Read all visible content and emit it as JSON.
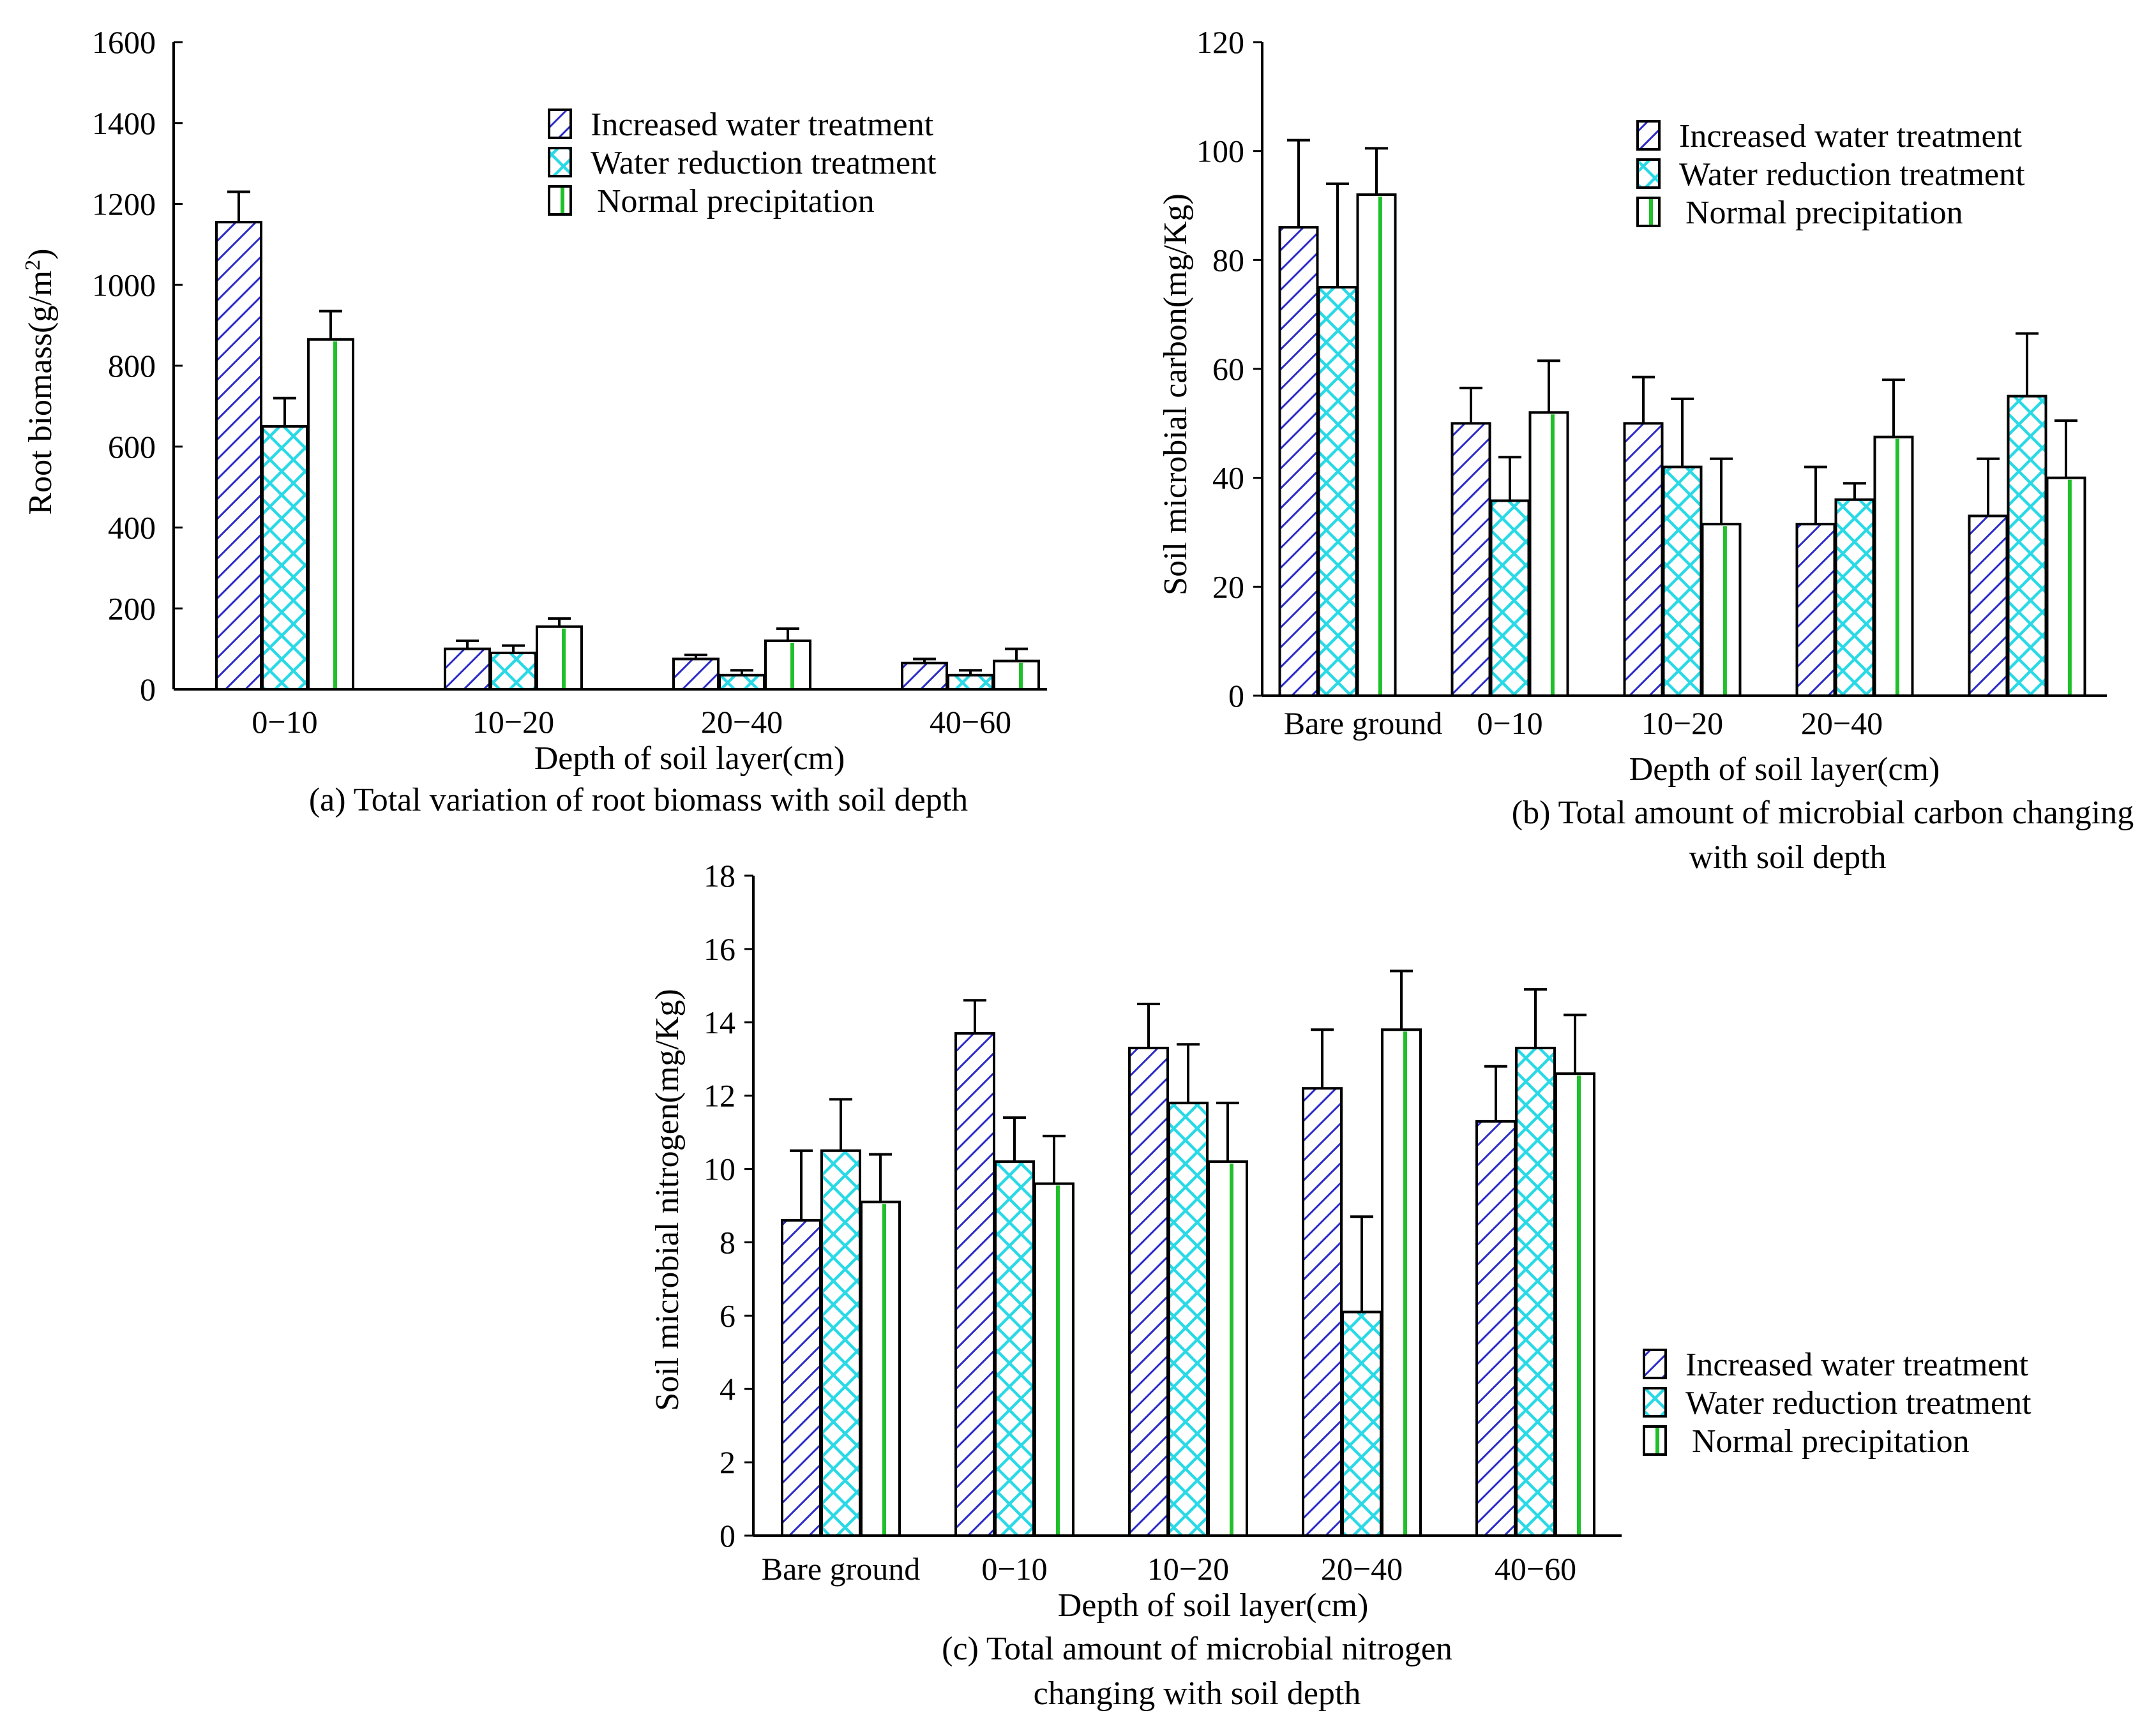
{
  "colors": {
    "increased_stroke": "#2b2bc8",
    "reduction_stroke": "#29d9e6",
    "normal_stroke": "#1fc02a",
    "frame": "#000000",
    "background": "#ffffff"
  },
  "legend": {
    "increased": "Increased water treatment",
    "reduction": "Water reduction treatment",
    "normal": "Normal precipitation"
  },
  "chart_data": [
    {
      "id": "a",
      "type": "bar",
      "caption": [
        "(a) Total variation of root biomass with soil depth"
      ],
      "xlabel": "Depth of soil layer(cm)",
      "ylabel": "Root biomass(g/m",
      "ylabel_sup": "2",
      "ylabel_end": ")",
      "ylim": [
        0,
        1600
      ],
      "yticks": [
        "0",
        "200",
        "400",
        "600",
        "800",
        "1000",
        "1200",
        "1400",
        "1600"
      ],
      "categories": [
        "0−10",
        "10−20",
        "20−40",
        "40−60"
      ],
      "legend_position": "top-right",
      "series": [
        {
          "name": "Increased water treatment",
          "pattern": "increased",
          "values": [
            1155,
            100,
            75,
            65
          ],
          "errors": [
            75,
            20,
            10,
            10
          ]
        },
        {
          "name": "Water reduction treatment",
          "pattern": "reduction",
          "values": [
            650,
            90,
            35,
            35
          ],
          "errors": [
            70,
            18,
            12,
            12
          ]
        },
        {
          "name": "Normal precipitation",
          "pattern": "normal",
          "values": [
            865,
            155,
            120,
            70
          ],
          "errors": [
            70,
            20,
            30,
            30
          ]
        }
      ]
    },
    {
      "id": "b",
      "type": "bar",
      "caption": [
        "(b) Total amount of microbial carbon changing",
        "with soil depth"
      ],
      "xlabel": "Depth of soil layer(cm)",
      "ylabel": "Soil microbial carbon(mg/Kg)",
      "ylim": [
        0,
        120
      ],
      "yticks": [
        "0",
        "20",
        "40",
        "60",
        "80",
        "100",
        "120"
      ],
      "categories": [
        "Bare ground",
        "0−10",
        "10−20",
        "20−40",
        ""
      ],
      "legend_position": "top-right",
      "series": [
        {
          "name": "Increased water treatment",
          "pattern": "increased",
          "values": [
            86,
            50,
            50,
            31.5,
            33
          ],
          "errors": [
            16,
            6.5,
            8.5,
            10.5,
            10.5
          ]
        },
        {
          "name": "Water reduction treatment",
          "pattern": "reduction",
          "values": [
            75,
            35.8,
            42,
            36,
            55
          ],
          "errors": [
            19,
            8,
            12.5,
            3,
            11.5
          ]
        },
        {
          "name": "Normal precipitation",
          "pattern": "normal",
          "values": [
            92,
            52,
            31.5,
            47.5,
            40
          ],
          "errors": [
            8.5,
            9.5,
            12,
            10.5,
            10.5
          ]
        }
      ]
    },
    {
      "id": "c",
      "type": "bar",
      "caption": [
        "(c) Total amount of microbial nitrogen",
        "changing with soil depth"
      ],
      "xlabel": "Depth of soil layer(cm)",
      "ylabel": "Soil microbial nitrogen(mg/Kg)",
      "ylim": [
        0,
        18
      ],
      "yticks": [
        "0",
        "2",
        "4",
        "6",
        "8",
        "10",
        "12",
        "14",
        "16",
        "18"
      ],
      "categories": [
        "Bare ground",
        "0−10",
        "10−20",
        "20−40",
        "40−60"
      ],
      "legend_position": "bottom-right",
      "series": [
        {
          "name": "Increased water treatment",
          "pattern": "increased",
          "values": [
            8.6,
            13.7,
            13.3,
            12.2,
            11.3
          ],
          "errors": [
            1.9,
            0.9,
            1.2,
            1.6,
            1.5
          ]
        },
        {
          "name": "Water reduction treatment",
          "pattern": "reduction",
          "values": [
            10.5,
            10.2,
            11.8,
            6.1,
            13.3
          ],
          "errors": [
            1.4,
            1.2,
            1.6,
            2.6,
            1.6
          ]
        },
        {
          "name": "Normal precipitation",
          "pattern": "normal",
          "values": [
            9.1,
            9.6,
            10.2,
            13.8,
            12.6
          ],
          "errors": [
            1.3,
            1.3,
            1.6,
            1.6,
            1.6
          ]
        }
      ]
    }
  ]
}
